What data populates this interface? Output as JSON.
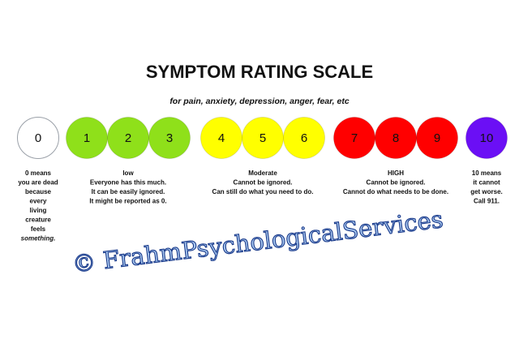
{
  "title": "SYMPTOM RATING SCALE",
  "subtitle": "for pain, anxiety, depression, anger, fear, etc",
  "levels": [
    {
      "label": "0",
      "color": "#ffffff"
    },
    {
      "label": "1",
      "color": "#8fe01a"
    },
    {
      "label": "2",
      "color": "#8fe01a"
    },
    {
      "label": "3",
      "color": "#8fe01a"
    },
    {
      "label": "4",
      "color": "#ffff00"
    },
    {
      "label": "5",
      "color": "#ffff00"
    },
    {
      "label": "6",
      "color": "#ffff00"
    },
    {
      "label": "7",
      "color": "#ff0000"
    },
    {
      "label": "8",
      "color": "#ff0000"
    },
    {
      "label": "9",
      "color": "#ff0000"
    },
    {
      "label": "10",
      "color": "#6b0ff5"
    }
  ],
  "descriptions": [
    {
      "lines": [
        "0 means",
        "you are dead",
        "because",
        "every",
        "living",
        "creature",
        "feels",
        "something."
      ]
    },
    {
      "lines": [
        "low",
        "Everyone has this much.",
        "It can be easily ignored.",
        "It might be reported as 0."
      ]
    },
    {
      "lines": [
        "Moderate",
        "Cannot be ignored.",
        "Can still do what you need to do."
      ]
    },
    {
      "lines": [
        "HIGH",
        "Cannot be ignored.",
        "Cannot do what needs to be done."
      ]
    },
    {
      "lines": [
        "10 means",
        "it cannot",
        "get worse.",
        "Call 911."
      ]
    }
  ],
  "watermark": "© FrahmPsychologicalServices"
}
